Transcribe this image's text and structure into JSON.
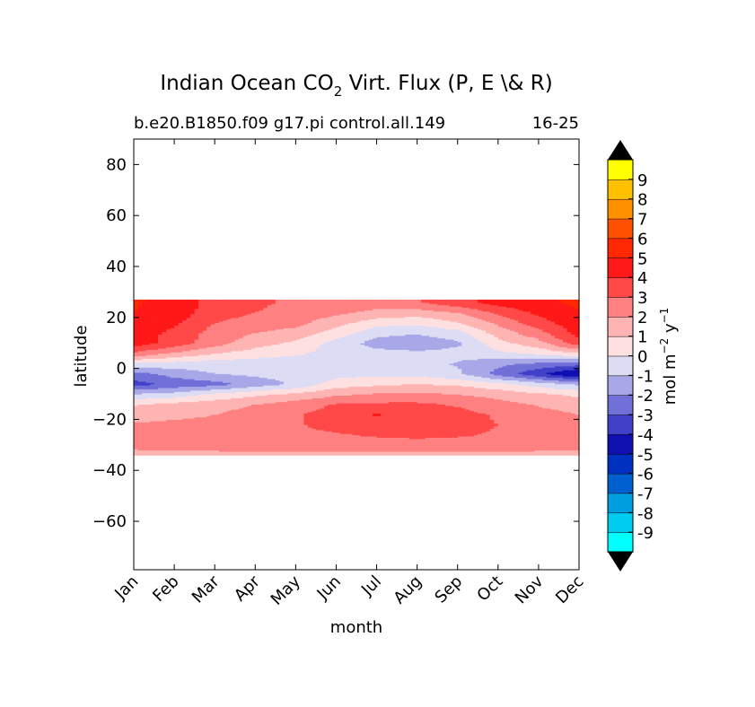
{
  "chart_data": {
    "type": "heatmap",
    "title_main": "Indian Ocean CO",
    "title_sub_2": "2",
    "title_rest": " Virt. Flux (P, E \\& R)",
    "subtitle_left": "b.e20.B1850.f09 g17.pi control.all.149",
    "subtitle_right": "16-25",
    "xlabel": "month",
    "ylabel": "latitude",
    "x_ticks": [
      "Jan",
      "Feb",
      "Mar",
      "Apr",
      "May",
      "Jun",
      "Jul",
      "Aug",
      "Sep",
      "Oct",
      "Nov",
      "Dec"
    ],
    "y_ticks": [
      80,
      60,
      40,
      20,
      0,
      -20,
      -40,
      -60
    ],
    "y_tick_labels": [
      "80",
      "60",
      "40",
      "20",
      "0",
      "−20",
      "−40",
      "−60"
    ],
    "ylim": [
      -79,
      90
    ],
    "xlim": [
      0,
      11
    ],
    "data_lat_range": [
      -34,
      27
    ],
    "colorbar": {
      "label_main": "mol m",
      "label_exp1": "−2",
      "label_mid": " y",
      "label_exp2": "−1",
      "levels": [
        -10,
        -9,
        -8,
        -7,
        -6,
        -5,
        -4,
        -3,
        -2,
        -1,
        0,
        1,
        2,
        3,
        4,
        5,
        6,
        7,
        8,
        9,
        10
      ],
      "tick_labels": [
        "-9",
        "-8",
        "-7",
        "-6",
        "-5",
        "-4",
        "-3",
        "-2",
        "-1",
        "0",
        "1",
        "2",
        "3",
        "4",
        "5",
        "6",
        "7",
        "8",
        "9"
      ],
      "colors": [
        "#00ffff",
        "#00ccf0",
        "#00a0e0",
        "#0060d0",
        "#0030c0",
        "#1010b0",
        "#4040c8",
        "#7070d8",
        "#a8a8e8",
        "#dcdcf4",
        "#ffe0e0",
        "#ffb4b4",
        "#ff8080",
        "#ff4848",
        "#ff1818",
        "#ff2800",
        "#ff5000",
        "#ff9000",
        "#ffc000",
        "#ffff00"
      ],
      "extend_color": "#000000"
    },
    "latitudes": [
      -34,
      -30,
      -26,
      -22,
      -18,
      -14,
      -10,
      -6,
      -2,
      2,
      6,
      10,
      14,
      18,
      22,
      26
    ],
    "values": [
      [
        1.6,
        1.6,
        1.6,
        1.6,
        1.6,
        1.6,
        1.6,
        1.6,
        1.6,
        1.6,
        1.6,
        1.6
      ],
      [
        2.3,
        2.4,
        2.5,
        2.6,
        2.6,
        2.6,
        2.6,
        2.6,
        2.6,
        2.6,
        2.5,
        2.4
      ],
      [
        2.6,
        2.8,
        2.8,
        2.7,
        2.8,
        2.9,
        3.1,
        3.2,
        3.1,
        2.9,
        2.7,
        2.6
      ],
      [
        2.1,
        2.2,
        2.2,
        2.4,
        2.9,
        3.3,
        3.4,
        3.4,
        3.3,
        3.0,
        2.6,
        2.3
      ],
      [
        1.6,
        1.8,
        2.0,
        2.4,
        2.9,
        3.4,
        4.1,
        3.5,
        3.3,
        2.9,
        2.4,
        2.0
      ],
      [
        0.9,
        1.3,
        1.6,
        2.0,
        2.5,
        3.1,
        3.2,
        3.2,
        2.9,
        2.4,
        1.9,
        1.5
      ],
      [
        -0.9,
        -0.6,
        0.2,
        0.8,
        1.2,
        1.8,
        2.1,
        2.2,
        2.0,
        1.6,
        1.2,
        0.8
      ],
      [
        -3.4,
        -2.7,
        -2.4,
        -1.6,
        -0.8,
        0.5,
        0.8,
        1.0,
        0.8,
        0.3,
        -0.5,
        -1.2
      ],
      [
        -2.4,
        -1.6,
        -1.0,
        -0.8,
        -0.6,
        -0.4,
        -0.2,
        -0.3,
        -0.8,
        -2.3,
        -3.8,
        -5.2
      ],
      [
        -0.2,
        -0.4,
        -0.6,
        -0.6,
        -0.5,
        -0.4,
        -0.2,
        -0.6,
        -1.1,
        -1.8,
        -2.2,
        -2.6
      ],
      [
        2.8,
        1.8,
        1.0,
        0.5,
        0.1,
        -0.3,
        -0.6,
        -0.7,
        -0.6,
        -0.3,
        0.2,
        0.8
      ],
      [
        4.5,
        3.6,
        2.4,
        1.4,
        0.8,
        -0.4,
        -1.4,
        -1.8,
        -1.2,
        0.6,
        1.6,
        3.6
      ],
      [
        4.6,
        3.7,
        2.6,
        2.0,
        1.6,
        0.6,
        -0.7,
        -0.9,
        -0.4,
        1.4,
        2.6,
        4.4
      ],
      [
        4.8,
        4.2,
        3.0,
        2.6,
        2.3,
        1.4,
        0.4,
        0.2,
        0.9,
        2.2,
        3.6,
        4.6
      ],
      [
        5.0,
        4.6,
        3.4,
        3.0,
        2.6,
        2.2,
        1.7,
        1.5,
        2.0,
        3.2,
        4.2,
        4.9
      ],
      [
        5.1,
        4.7,
        3.6,
        3.2,
        2.8,
        2.6,
        2.6,
        2.9,
        3.6,
        4.4,
        4.8,
        5.2
      ]
    ]
  }
}
